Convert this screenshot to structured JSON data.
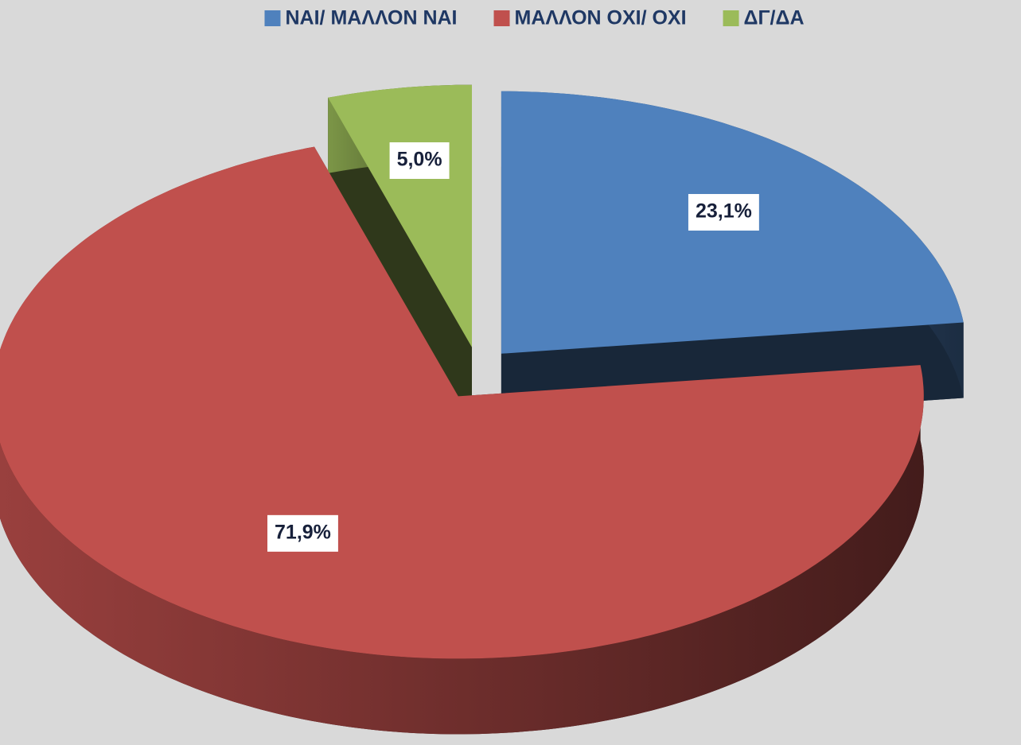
{
  "chart_data": {
    "type": "pie",
    "categories": [
      "ΝΑΙ/ ΜΑΛΛΟΝ ΝΑΙ",
      "ΜΑΛΛΟΝ ΟΧΙ/ ΟΧΙ",
      "ΔΓ/ΔΑ"
    ],
    "values": [
      23.1,
      71.9,
      5.0
    ],
    "value_labels": [
      "23,1%",
      "71,9%",
      "5,0%"
    ],
    "colors": [
      "#4f81bd",
      "#c0504d",
      "#9bbb59"
    ],
    "legend": "top"
  }
}
